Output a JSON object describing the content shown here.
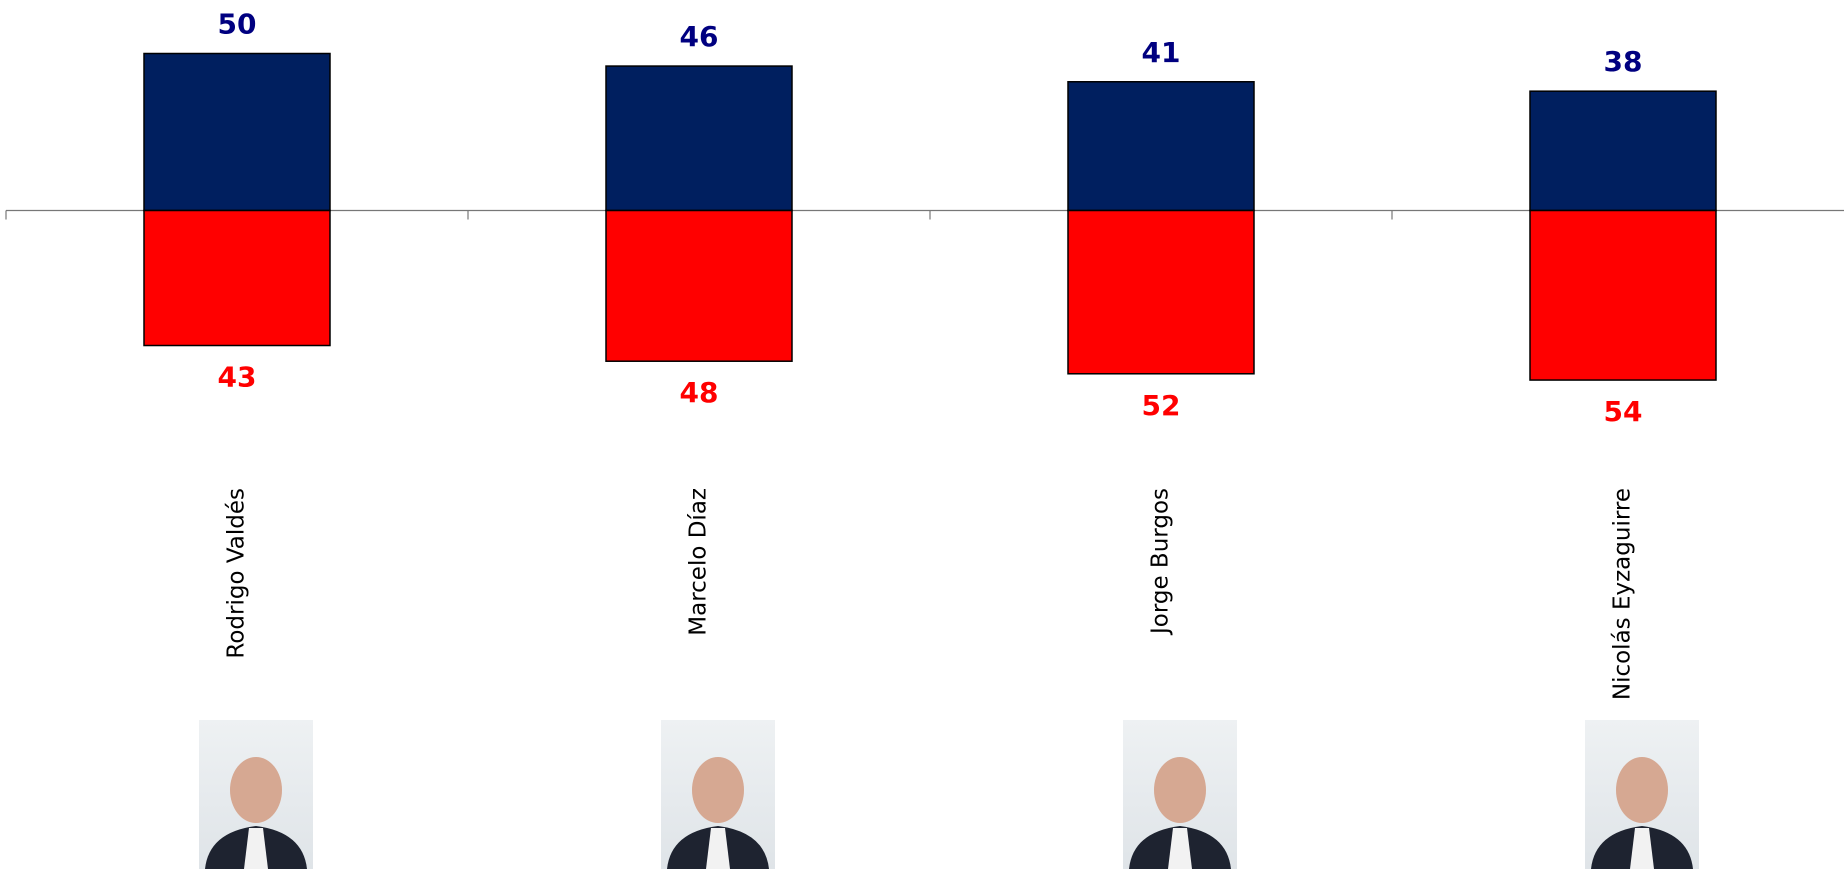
{
  "chart_data": {
    "type": "diverging_bar",
    "categories": [
      "Rodrigo Valdés",
      "Marcelo Díaz",
      "Jorge Burgos",
      "Nicolás Eyzaguirre"
    ],
    "series": [
      {
        "color": "#001f5f",
        "label_color": "#000080",
        "direction": "up",
        "values": [
          50,
          46,
          41,
          38
        ]
      },
      {
        "color": "#ff0000",
        "label_color": "#ff0000",
        "direction": "down",
        "values": [
          43,
          48,
          52,
          54
        ]
      }
    ]
  }
}
